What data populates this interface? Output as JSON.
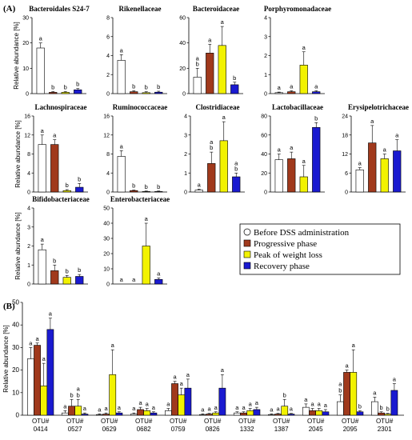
{
  "panel_a_label": "(A)",
  "panel_b_label": "(B)",
  "legend": [
    {
      "label": "Before DSS administration",
      "color": "#ffffff"
    },
    {
      "label": "Progressive phase",
      "color": "#a0391c"
    },
    {
      "label": "Peak of weight loss",
      "color": "#f2f200"
    },
    {
      "label": "Recovery phase",
      "color": "#1a1ad0"
    }
  ],
  "chart_data": [
    {
      "type": "bar",
      "title": "Bacteroidales S24-7",
      "ylabel": "Relative abundance [%]",
      "ylim": [
        0,
        30
      ],
      "yticks": [
        0,
        10,
        20,
        30
      ],
      "values": [
        18.0,
        0.5,
        0.5,
        1.5
      ],
      "errors": [
        2.0,
        0.3,
        0.3,
        0.5
      ],
      "letters": [
        [
          "a"
        ],
        [
          "b"
        ],
        [
          "b"
        ],
        [
          "b"
        ]
      ]
    },
    {
      "type": "bar",
      "title": "Rikenellaceae",
      "ylabel": "",
      "ylim": [
        0,
        8
      ],
      "yticks": [
        0,
        2,
        4,
        6,
        8
      ],
      "values": [
        3.5,
        0.2,
        0.1,
        0.15
      ],
      "errors": [
        0.6,
        0.1,
        0.1,
        0.1
      ],
      "letters": [
        [
          "a"
        ],
        [
          "b"
        ],
        [
          "b"
        ],
        [
          "b"
        ]
      ]
    },
    {
      "type": "bar",
      "title": "Bacteroidaceae",
      "ylabel": "",
      "ylim": [
        0,
        60
      ],
      "yticks": [
        0,
        20,
        40,
        60
      ],
      "values": [
        13.0,
        32.0,
        38.0,
        7.0
      ],
      "errors": [
        7.0,
        7.0,
        15.0,
        2.0
      ],
      "letters": [
        [
          "a",
          "b"
        ],
        [
          "a"
        ],
        [
          "a"
        ],
        [
          "b"
        ]
      ]
    },
    {
      "type": "bar",
      "title": "Porphyromonadaceae",
      "ylabel": "",
      "ylim": [
        0,
        4
      ],
      "yticks": [
        0,
        1,
        2,
        3,
        4
      ],
      "values": [
        0.05,
        0.1,
        1.5,
        0.1
      ],
      "errors": [
        0.03,
        0.05,
        0.7,
        0.05
      ],
      "letters": [
        [
          "a"
        ],
        [
          "a"
        ],
        [
          "a"
        ],
        [
          "a"
        ]
      ]
    },
    {
      "type": "bar",
      "title": "Lachnospiraceae",
      "ylabel": "Relative abundance [%]",
      "ylim": [
        0,
        16
      ],
      "yticks": [
        0,
        4,
        8,
        12,
        16
      ],
      "values": [
        10.0,
        10.0,
        0.3,
        1.0
      ],
      "errors": [
        2.0,
        1.0,
        0.2,
        0.8
      ],
      "letters": [
        [
          "a"
        ],
        [
          "a"
        ],
        [
          "b"
        ],
        [
          "b"
        ]
      ]
    },
    {
      "type": "bar",
      "title": "Ruminococcaceae",
      "ylabel": "",
      "ylim": [
        0,
        16
      ],
      "yticks": [
        0,
        4,
        8,
        12,
        16
      ],
      "values": [
        7.5,
        0.3,
        0.1,
        0.1
      ],
      "errors": [
        1.2,
        0.1,
        0.1,
        0.1
      ],
      "letters": [
        [
          "a"
        ],
        [
          "b"
        ],
        [
          "b"
        ],
        [
          "b"
        ]
      ]
    },
    {
      "type": "bar",
      "title": "Clostridiaceae",
      "ylabel": "",
      "ylim": [
        0,
        4
      ],
      "yticks": [
        0,
        1,
        2,
        3,
        4
      ],
      "values": [
        0.1,
        1.5,
        2.7,
        0.8
      ],
      "errors": [
        0.05,
        0.6,
        1.0,
        0.2
      ],
      "letters": [
        [
          "a"
        ],
        [
          "a",
          "b"
        ],
        [
          "a"
        ],
        [
          "a",
          "b"
        ]
      ]
    },
    {
      "type": "bar",
      "title": "Lactobacillaceae",
      "ylabel": "",
      "ylim": [
        0,
        80
      ],
      "yticks": [
        0,
        20,
        40,
        60,
        80
      ],
      "values": [
        34.0,
        35.0,
        16.0,
        68.0
      ],
      "errors": [
        6.0,
        7.0,
        12.0,
        5.0
      ],
      "letters": [
        [
          "a"
        ],
        [
          "a"
        ],
        [
          "a"
        ],
        [
          "b"
        ]
      ]
    },
    {
      "type": "bar",
      "title": "Erysipelotrichaceae",
      "ylabel": "",
      "ylim": [
        0,
        24
      ],
      "yticks": [
        0,
        6,
        12,
        18,
        24
      ],
      "values": [
        7.0,
        15.5,
        10.5,
        13.0
      ],
      "errors": [
        0.7,
        5.5,
        1.5,
        3.5
      ],
      "letters": [
        [
          "a"
        ],
        [
          "a"
        ],
        [
          "a"
        ],
        [
          "a"
        ]
      ]
    },
    {
      "type": "bar",
      "title": "Bifidobacteriaceae",
      "ylabel": "Relative abundance [%]",
      "ylim": [
        0,
        4
      ],
      "yticks": [
        0,
        1,
        2,
        3,
        4
      ],
      "values": [
        1.8,
        0.7,
        0.35,
        0.4
      ],
      "errors": [
        0.3,
        0.3,
        0.1,
        0.1
      ],
      "letters": [
        [
          "a"
        ],
        [
          "b"
        ],
        [
          "b"
        ],
        [
          "b"
        ]
      ]
    },
    {
      "type": "bar",
      "title": "Enterobacteriaceae",
      "ylabel": "",
      "ylim": [
        0,
        50
      ],
      "yticks": [
        0,
        10,
        20,
        30,
        40,
        50
      ],
      "values": [
        0,
        0,
        25.0,
        3.0
      ],
      "errors": [
        0,
        0,
        15.0,
        1.0
      ],
      "letters": [
        [
          "a"
        ],
        [
          "a"
        ],
        [
          "a"
        ],
        [
          "a"
        ]
      ]
    },
    {
      "type": "bar",
      "title": "",
      "ylabel": "Relative abundance [%]",
      "ylim": [
        0,
        50
      ],
      "yticks": [
        0,
        10,
        20,
        30,
        40,
        50
      ],
      "categories": [
        "OTU#\n0414",
        "OTU#\n0527",
        "OTU#\n0629",
        "OTU#\n0682",
        "OTU#\n0759",
        "OTU#\n0826",
        "OTU#\n1332",
        "OTU#\n1387",
        "OTU#\n2045",
        "OTU#\n2095",
        "OTU#\n2301"
      ],
      "values": [
        [
          25,
          31,
          13,
          38
        ],
        [
          1,
          4,
          4,
          0.5
        ],
        [
          0.3,
          0.5,
          18,
          1
        ],
        [
          0.5,
          2.5,
          2,
          1
        ],
        [
          2,
          14,
          9,
          12
        ],
        [
          0.3,
          0.5,
          1,
          12
        ],
        [
          1,
          1,
          2,
          2.5
        ],
        [
          0.3,
          0.5,
          4,
          0.5
        ],
        [
          3.5,
          2,
          2,
          1.5
        ],
        [
          6,
          19,
          19,
          1.5
        ],
        [
          6,
          1,
          0.5,
          11
        ]
      ],
      "errors": [
        [
          5,
          1,
          10,
          5
        ],
        [
          1,
          3,
          3,
          0.5
        ],
        [
          0.3,
          0.5,
          11,
          0.5
        ],
        [
          0.5,
          1,
          1,
          0.5
        ],
        [
          1,
          1,
          3,
          4
        ],
        [
          0.3,
          0.3,
          0.5,
          6
        ],
        [
          0.5,
          0.5,
          1,
          1
        ],
        [
          0.3,
          0.3,
          3,
          0.3
        ],
        [
          1.5,
          1,
          1,
          1
        ],
        [
          3,
          1,
          10,
          0.5
        ],
        [
          2,
          0.5,
          0.3,
          3
        ]
      ],
      "letters": [
        [
          [
            "a"
          ],
          [
            "a"
          ],
          [
            "a"
          ],
          [
            "a"
          ]
        ],
        [
          [
            "a"
          ],
          [
            "b"
          ],
          [
            "a",
            "b"
          ],
          [
            "a"
          ]
        ],
        [
          [
            "a"
          ],
          [
            "a"
          ],
          [
            "a"
          ],
          [
            "a"
          ]
        ],
        [
          [
            "a"
          ],
          [
            "a"
          ],
          [
            "a"
          ],
          [
            "a"
          ]
        ],
        [
          [
            "a"
          ],
          [
            "a"
          ],
          [
            "a"
          ],
          [
            "a"
          ]
        ],
        [
          [
            "a"
          ],
          [
            "a"
          ],
          [
            "a"
          ],
          [
            "a"
          ]
        ],
        [
          [
            "a"
          ],
          [
            "a"
          ],
          [
            "a"
          ],
          [
            "a"
          ]
        ],
        [
          [
            "a"
          ],
          [
            "a"
          ],
          [
            "b"
          ],
          [
            "a"
          ]
        ],
        [
          [
            "a"
          ],
          [
            "a"
          ],
          [
            "a"
          ],
          [
            "a"
          ]
        ],
        [
          [
            "a",
            "b"
          ],
          [
            "a"
          ],
          [
            "a"
          ],
          [
            "b"
          ]
        ],
        [
          [
            "a"
          ],
          [
            "b"
          ],
          [
            "b"
          ],
          [
            "a"
          ]
        ]
      ]
    }
  ]
}
